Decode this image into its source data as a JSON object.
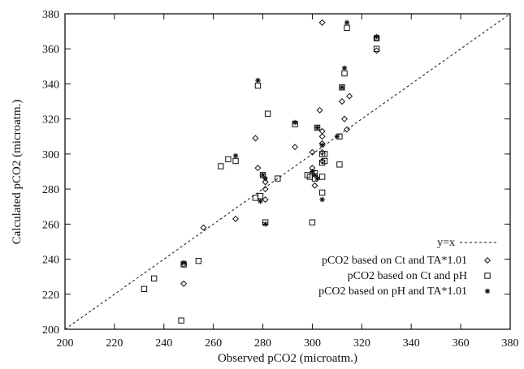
{
  "chart_data": {
    "type": "scatter",
    "xlabel": "Observed pCO2 (microatm.)",
    "ylabel": "Calculated pCO2 (microatm.)",
    "xlim": [
      200,
      380
    ],
    "ylim": [
      200,
      380
    ],
    "xticks": [
      "200",
      "220",
      "240",
      "260",
      "280",
      "300",
      "320",
      "340",
      "360",
      "380"
    ],
    "yticks": [
      "200",
      "220",
      "240",
      "260",
      "280",
      "300",
      "320",
      "340",
      "360",
      "380"
    ],
    "grid": false,
    "legend_position": "lower-right",
    "reference_line": {
      "name": "y=x",
      "style": "dashed"
    },
    "series": [
      {
        "name": "pCO2 based on Ct and TA*1.01",
        "marker": "diamond",
        "points": [
          [
            248,
            226
          ],
          [
            248,
            237
          ],
          [
            256,
            258
          ],
          [
            269,
            263
          ],
          [
            277,
            309
          ],
          [
            278,
            292
          ],
          [
            281,
            284
          ],
          [
            281,
            280
          ],
          [
            281,
            274
          ],
          [
            293,
            304
          ],
          [
            300,
            301
          ],
          [
            300,
            292
          ],
          [
            301,
            282
          ],
          [
            303,
            325
          ],
          [
            304,
            313
          ],
          [
            304,
            310
          ],
          [
            304,
            306
          ],
          [
            304,
            301
          ],
          [
            304,
            296
          ],
          [
            312,
            330
          ],
          [
            313,
            320
          ],
          [
            314,
            314
          ],
          [
            315,
            333
          ],
          [
            326,
            359
          ],
          [
            326,
            366
          ],
          [
            304,
            375
          ]
        ]
      },
      {
        "name": "pCO2 based on Ct and pH",
        "marker": "square",
        "points": [
          [
            232,
            223
          ],
          [
            236,
            229
          ],
          [
            247,
            205
          ],
          [
            248,
            237
          ],
          [
            254,
            239
          ],
          [
            263,
            293
          ],
          [
            266,
            297
          ],
          [
            269,
            296
          ],
          [
            277,
            275
          ],
          [
            278,
            339
          ],
          [
            279,
            276
          ],
          [
            280,
            288
          ],
          [
            281,
            261
          ],
          [
            282,
            323
          ],
          [
            286,
            286
          ],
          [
            293,
            317
          ],
          [
            298,
            288
          ],
          [
            299,
            287
          ],
          [
            300,
            261
          ],
          [
            301,
            289
          ],
          [
            301,
            286
          ],
          [
            302,
            315
          ],
          [
            304,
            300
          ],
          [
            304,
            295
          ],
          [
            304,
            287
          ],
          [
            304,
            278
          ],
          [
            305,
            296
          ],
          [
            305,
            300
          ],
          [
            311,
            310
          ],
          [
            311,
            294
          ],
          [
            312,
            338
          ],
          [
            313,
            346
          ],
          [
            314,
            372
          ],
          [
            326,
            360
          ],
          [
            326,
            366
          ]
        ]
      },
      {
        "name": "pCO2 based on pH and TA*1.01",
        "marker": "asterisk",
        "points": [
          [
            248,
            238
          ],
          [
            269,
            299
          ],
          [
            278,
            342
          ],
          [
            279,
            273
          ],
          [
            280,
            288
          ],
          [
            281,
            286
          ],
          [
            281,
            260
          ],
          [
            293,
            318
          ],
          [
            300,
            290
          ],
          [
            301,
            288
          ],
          [
            302,
            286
          ],
          [
            302,
            315
          ],
          [
            304,
            305
          ],
          [
            304,
            274
          ],
          [
            310,
            310
          ],
          [
            312,
            338
          ],
          [
            313,
            349
          ],
          [
            314,
            375
          ],
          [
            326,
            367
          ]
        ]
      }
    ]
  }
}
